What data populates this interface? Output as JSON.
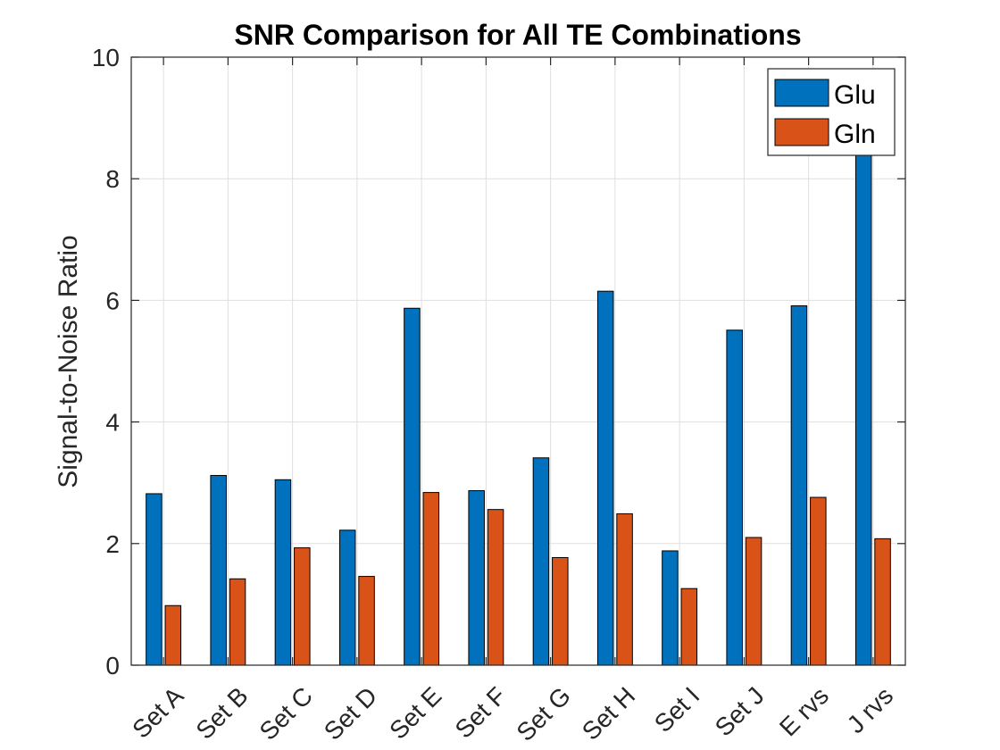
{
  "chart_data": {
    "type": "bar",
    "title": "SNR Comparison for All TE Combinations",
    "xlabel": "",
    "ylabel": "Signal-to-Noise Ratio",
    "categories": [
      "Set A",
      "Set B",
      "Set C",
      "Set D",
      "Set E",
      "Set F",
      "Set G",
      "Set H",
      "Set I",
      "Set J",
      "E rvs",
      "J rvs"
    ],
    "series": [
      {
        "name": "Glu",
        "color": "#0072BD",
        "values": [
          2.82,
          3.12,
          3.05,
          2.22,
          5.87,
          2.87,
          3.41,
          6.15,
          1.88,
          5.51,
          5.91,
          9.08
        ]
      },
      {
        "name": "Gln",
        "color": "#D95319",
        "values": [
          0.98,
          1.42,
          1.93,
          1.46,
          2.84,
          2.56,
          1.77,
          2.49,
          1.26,
          2.1,
          2.76,
          2.08
        ]
      }
    ],
    "ylim": [
      0,
      10
    ],
    "yticks": [
      "0",
      "2",
      "4",
      "6",
      "8",
      "10"
    ],
    "grid": true,
    "legend": "top-right"
  }
}
